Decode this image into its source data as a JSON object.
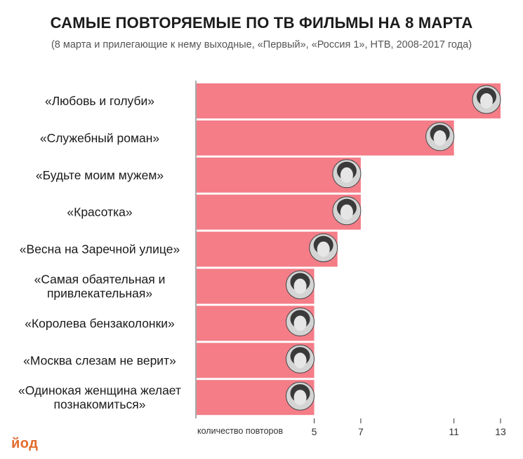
{
  "title": "САМЫЕ ПОВТОРЯЕМЫЕ ПО ТВ ФИЛЬМЫ НА 8 МАРТА",
  "subtitle": "(8 марта и прилегающие к нему выходные, «Первый», «Россия 1», НТВ, 2008-2017 года)",
  "logo": "йод",
  "chart_data": {
    "type": "bar",
    "orientation": "horizontal",
    "title": "САМЫЕ ПОВТОРЯЕМЫЕ ПО ТВ ФИЛЬМЫ НА 8 МАРТА",
    "subtitle": "(8 марта и прилегающие к нему выходные, «Первый», «Россия 1», НТВ, 2008-2017 года)",
    "xlabel": "количество повторов",
    "categories": [
      [
        "«Любовь и голуби»"
      ],
      [
        "«Служебный роман»"
      ],
      [
        "«Будьте моим мужем»"
      ],
      [
        "«Красотка»"
      ],
      [
        "«Весна на Заречной улице»"
      ],
      [
        "«Самая обаятельная и",
        "привлекательная»"
      ],
      [
        "«Королева бензаколонки»"
      ],
      [
        "«Москва слезам не верит»"
      ],
      [
        "«Одинокая женщина желает",
        "познакомиться»"
      ]
    ],
    "values": [
      13,
      11,
      7,
      7,
      6,
      5,
      5,
      5,
      5
    ],
    "xticks": [
      5,
      7,
      11,
      13
    ],
    "xlim": [
      -0.05,
      13
    ],
    "bar_color": "#f47d88",
    "grid": false
  }
}
